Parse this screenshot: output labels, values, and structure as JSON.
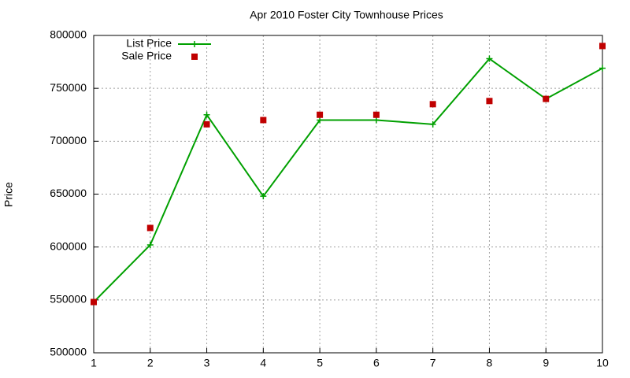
{
  "chart_data": {
    "type": "line",
    "title": "Apr 2010 Foster City Townhouse Prices",
    "y_label": "Price",
    "x": [
      1,
      2,
      3,
      4,
      5,
      6,
      7,
      8,
      9,
      10
    ],
    "series": [
      {
        "name": "List Price",
        "color": "#00a000",
        "style": "linespoints",
        "values": [
          548000,
          602000,
          725000,
          648000,
          720000,
          720000,
          716000,
          778000,
          740000,
          769000
        ]
      },
      {
        "name": "Sale Price",
        "color": "#c00000",
        "style": "points",
        "values": [
          548000,
          618000,
          716000,
          720000,
          725000,
          725000,
          735000,
          738000,
          740000,
          790000
        ]
      }
    ],
    "xlim": [
      1,
      10
    ],
    "xticks": [
      1,
      2,
      3,
      4,
      5,
      6,
      7,
      8,
      9,
      10
    ],
    "ylim": [
      500000,
      800000
    ],
    "yticks": [
      500000,
      550000,
      600000,
      650000,
      700000,
      750000,
      800000
    ],
    "grid": true,
    "legend": "top-left"
  }
}
